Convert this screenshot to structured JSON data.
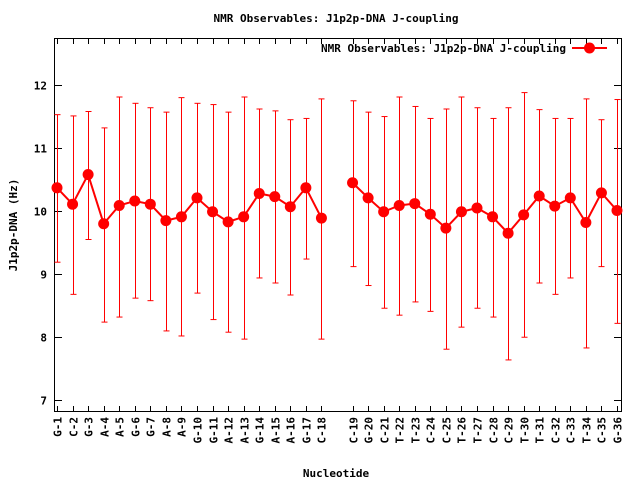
{
  "chart_data": {
    "type": "line",
    "title": "NMR Observables: J1p2p-DNA J-coupling",
    "xlabel": "Nucleotide",
    "ylabel": "J1p2p-DNA (Hz)",
    "ylim": [
      6.83,
      12.73
    ],
    "yticks": [
      7,
      8,
      9,
      10,
      11,
      12
    ],
    "grid": false,
    "legend": {
      "label": "NMR Observables: J1p2p-DNA J-coupling",
      "placement": "top-right"
    },
    "color": "#ff0000",
    "series": [
      {
        "name": "NMR Observables: J1p2p-DNA J-coupling",
        "points": [
          {
            "label": "G-1",
            "x": 1,
            "y": 10.37,
            "ymax": 11.53,
            "ymin": 9.19
          },
          {
            "label": "C-2",
            "x": 2,
            "y": 10.11,
            "ymax": 11.51,
            "ymin": 8.68
          },
          {
            "label": "G-3",
            "x": 3,
            "y": 10.58,
            "ymax": 11.58,
            "ymin": 9.55
          },
          {
            "label": "A-4",
            "x": 4,
            "y": 9.8,
            "ymax": 11.32,
            "ymin": 8.24
          },
          {
            "label": "A-5",
            "x": 5,
            "y": 10.09,
            "ymax": 11.81,
            "ymin": 8.32
          },
          {
            "label": "G-6",
            "x": 6,
            "y": 10.16,
            "ymax": 11.71,
            "ymin": 8.62
          },
          {
            "label": "G-7",
            "x": 7,
            "y": 10.11,
            "ymax": 11.64,
            "ymin": 8.58
          },
          {
            "label": "A-8",
            "x": 8,
            "y": 9.85,
            "ymax": 11.57,
            "ymin": 8.1
          },
          {
            "label": "A-9",
            "x": 9,
            "y": 9.91,
            "ymax": 11.8,
            "ymin": 8.02
          },
          {
            "label": "G-10",
            "x": 10,
            "y": 10.21,
            "ymax": 11.71,
            "ymin": 8.7
          },
          {
            "label": "G-11",
            "x": 11,
            "y": 9.99,
            "ymax": 11.69,
            "ymin": 8.28
          },
          {
            "label": "A-12",
            "x": 12,
            "y": 9.83,
            "ymax": 11.57,
            "ymin": 8.08
          },
          {
            "label": "A-13",
            "x": 13,
            "y": 9.91,
            "ymax": 11.81,
            "ymin": 7.97
          },
          {
            "label": "G-14",
            "x": 14,
            "y": 10.28,
            "ymax": 11.62,
            "ymin": 8.94
          },
          {
            "label": "A-15",
            "x": 15,
            "y": 10.23,
            "ymax": 11.59,
            "ymin": 8.86
          },
          {
            "label": "A-16",
            "x": 16,
            "y": 10.07,
            "ymax": 11.45,
            "ymin": 8.67
          },
          {
            "label": "G-17",
            "x": 17,
            "y": 10.37,
            "ymax": 11.47,
            "ymin": 9.24
          },
          {
            "label": "C-18",
            "x": 18,
            "y": 9.89,
            "ymax": 11.78,
            "ymin": 7.97
          },
          {
            "label": "C-19",
            "x": 20,
            "y": 10.45,
            "ymax": 11.75,
            "ymin": 9.12
          },
          {
            "label": "G-20",
            "x": 21,
            "y": 10.21,
            "ymax": 11.57,
            "ymin": 8.82
          },
          {
            "label": "C-21",
            "x": 22,
            "y": 9.99,
            "ymax": 11.5,
            "ymin": 8.46
          },
          {
            "label": "T-22",
            "x": 23,
            "y": 10.09,
            "ymax": 11.81,
            "ymin": 8.35
          },
          {
            "label": "T-23",
            "x": 24,
            "y": 10.12,
            "ymax": 11.66,
            "ymin": 8.56
          },
          {
            "label": "C-24",
            "x": 25,
            "y": 9.95,
            "ymax": 11.47,
            "ymin": 8.41
          },
          {
            "label": "C-25",
            "x": 26,
            "y": 9.73,
            "ymax": 11.62,
            "ymin": 7.81
          },
          {
            "label": "T-26",
            "x": 27,
            "y": 9.99,
            "ymax": 11.81,
            "ymin": 8.16
          },
          {
            "label": "T-27",
            "x": 28,
            "y": 10.05,
            "ymax": 11.64,
            "ymin": 8.46
          },
          {
            "label": "C-28",
            "x": 29,
            "y": 9.91,
            "ymax": 11.47,
            "ymin": 8.32
          },
          {
            "label": "C-29",
            "x": 30,
            "y": 9.65,
            "ymax": 11.64,
            "ymin": 7.64
          },
          {
            "label": "T-30",
            "x": 31,
            "y": 9.94,
            "ymax": 11.88,
            "ymin": 8.0
          },
          {
            "label": "T-31",
            "x": 32,
            "y": 10.24,
            "ymax": 11.61,
            "ymin": 8.86
          },
          {
            "label": "C-32",
            "x": 33,
            "y": 10.08,
            "ymax": 11.47,
            "ymin": 8.68
          },
          {
            "label": "C-33",
            "x": 34,
            "y": 10.21,
            "ymax": 11.47,
            "ymin": 8.94
          },
          {
            "label": "T-34",
            "x": 35,
            "y": 9.82,
            "ymax": 11.78,
            "ymin": 7.83
          },
          {
            "label": "C-35",
            "x": 36,
            "y": 10.29,
            "ymax": 11.45,
            "ymin": 9.12
          },
          {
            "label": "G-36",
            "x": 37,
            "y": 10.01,
            "ymax": 11.77,
            "ymin": 8.22
          }
        ]
      }
    ]
  }
}
